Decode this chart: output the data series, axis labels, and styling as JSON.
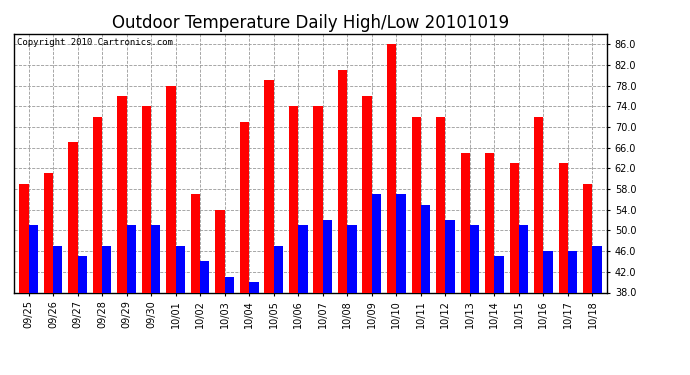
{
  "title": "Outdoor Temperature Daily High/Low 20101019",
  "copyright": "Copyright 2010 Cartronics.com",
  "categories": [
    "09/25",
    "09/26",
    "09/27",
    "09/28",
    "09/29",
    "09/30",
    "10/01",
    "10/02",
    "10/03",
    "10/04",
    "10/05",
    "10/06",
    "10/07",
    "10/08",
    "10/09",
    "10/10",
    "10/11",
    "10/12",
    "10/13",
    "10/14",
    "10/15",
    "10/16",
    "10/17",
    "10/18"
  ],
  "highs": [
    59,
    61,
    67,
    72,
    76,
    74,
    78,
    57,
    54,
    71,
    79,
    74,
    74,
    81,
    76,
    86,
    72,
    72,
    65,
    65,
    63,
    72,
    63,
    59
  ],
  "lows": [
    51,
    47,
    45,
    47,
    51,
    51,
    47,
    44,
    41,
    40,
    47,
    51,
    52,
    51,
    57,
    57,
    55,
    52,
    51,
    45,
    51,
    46,
    46,
    47
  ],
  "high_color": "#ff0000",
  "low_color": "#0000ff",
  "ymin": 38,
  "ymax": 88,
  "yticks": [
    38.0,
    42.0,
    46.0,
    50.0,
    54.0,
    58.0,
    62.0,
    66.0,
    70.0,
    74.0,
    78.0,
    82.0,
    86.0
  ],
  "background_color": "#ffffff",
  "grid_color": "#999999",
  "bar_width": 0.38,
  "title_fontsize": 12,
  "tick_fontsize": 7,
  "copyright_fontsize": 6.5
}
